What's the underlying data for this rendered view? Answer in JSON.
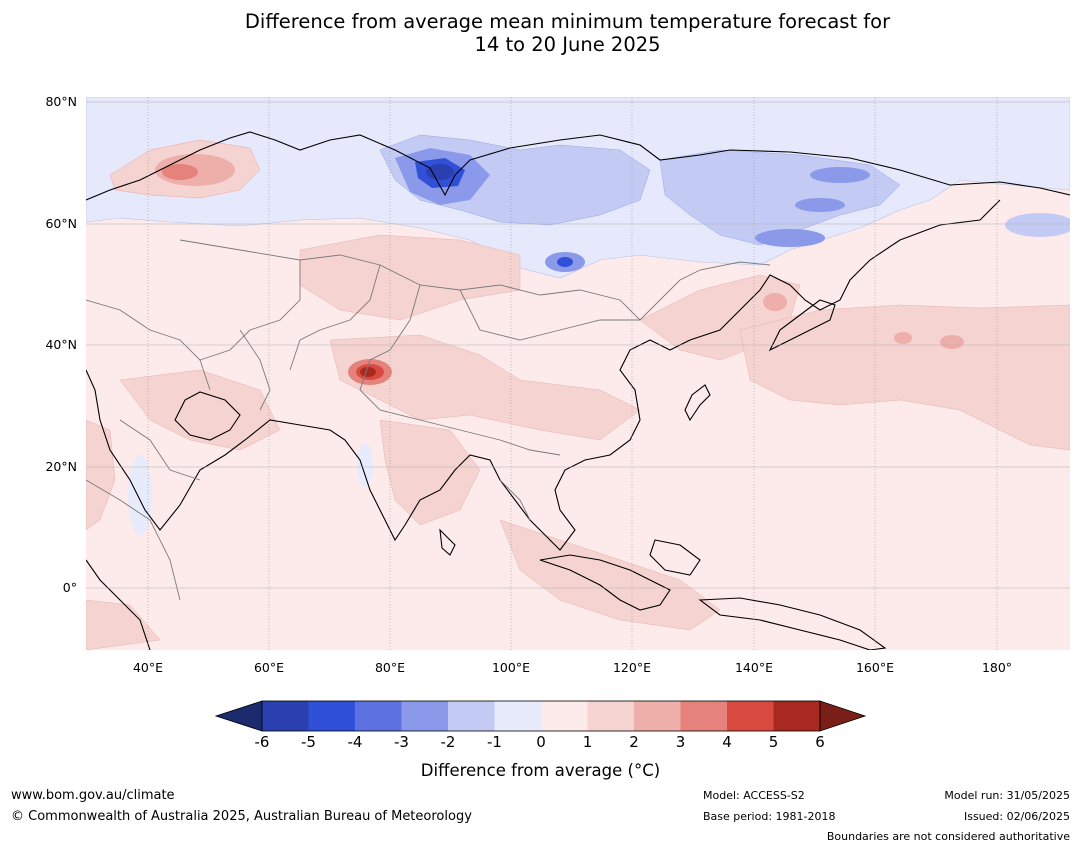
{
  "title": {
    "line1": "Difference from average mean minimum temperature forecast for",
    "line2": "14 to 20 June 2025"
  },
  "map": {
    "region": "Asia",
    "lat_labels": [
      "80°N",
      "60°N",
      "40°N",
      "20°N",
      "0°"
    ],
    "lon_labels": [
      "40°E",
      "60°E",
      "80°E",
      "100°E",
      "120°E",
      "140°E",
      "160°E",
      "180°"
    ],
    "background_anomaly_color": "#fcebea",
    "anomaly_regions": [
      {
        "name": "arctic-coast-cool",
        "color": "#e6e9fb"
      },
      {
        "name": "west-siberia-cold",
        "color": "#8a9ae6"
      },
      {
        "name": "west-siberia-core",
        "color": "#2c44c4"
      },
      {
        "name": "east-siberia-cool",
        "color": "#c4cbf2"
      },
      {
        "name": "kola-warm",
        "color": "#e88078"
      },
      {
        "name": "tibet-hotspot",
        "color": "#a93028"
      },
      {
        "name": "pacific-warm",
        "color": "#f5d3d1"
      }
    ]
  },
  "colorbar": {
    "tick_labels": [
      "-6",
      "-5",
      "-4",
      "-3",
      "-2",
      "-1",
      "0",
      "1",
      "2",
      "3",
      "4",
      "5",
      "6"
    ],
    "colors": [
      "#1c2a6e",
      "#2a3fb0",
      "#3050d8",
      "#5d72e0",
      "#8a99ea",
      "#c3caf3",
      "#e8ebfb",
      "#fcebea",
      "#f5d3d1",
      "#eeaeaa",
      "#e6827c",
      "#d84a40",
      "#a8291f",
      "#7a1f18"
    ],
    "label": "Difference from average (°C)"
  },
  "footer": {
    "website": "www.bom.gov.au/climate",
    "copyright": "© Commonwealth of Australia 2025, Australian Bureau of Meteorology",
    "model": "Model: ACCESS-S2",
    "base_period": "Base period: 1981-2018",
    "model_run": "Model run: 31/05/2025",
    "issued": "Issued: 02/06/2025",
    "disclaimer": "Boundaries are not considered authoritative"
  }
}
